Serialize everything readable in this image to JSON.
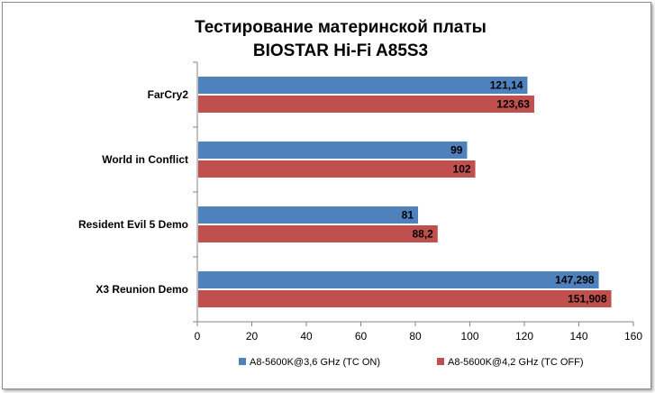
{
  "chart_data": {
    "type": "bar",
    "orientation": "horizontal",
    "title_lines": [
      "Тестирование материнской платы",
      "BIOSTAR Hi-Fi A85S3"
    ],
    "categories": [
      "FarCry2",
      "World in Conflict",
      "Resident Evil 5 Demo",
      "X3 Reunion Demo"
    ],
    "series": [
      {
        "name": "A8-5600K@3,6 GHz (TC ON)",
        "color": "#4f81bd",
        "values": [
          121.14,
          99,
          81,
          147.298
        ],
        "labels": [
          "121,14",
          "99",
          "81",
          "147,298"
        ]
      },
      {
        "name": "A8-5600K@4,2 GHz (TC OFF)",
        "color": "#c0504d",
        "values": [
          123.63,
          102,
          88.2,
          151.908
        ],
        "labels": [
          "123,63",
          "102",
          "88,2",
          "151,908"
        ]
      }
    ],
    "xlim": [
      0,
      160
    ],
    "x_ticks": [
      0,
      20,
      40,
      60,
      80,
      100,
      120,
      140,
      160
    ],
    "xlabel": "",
    "ylabel": "",
    "grid": false,
    "legend_position": "bottom"
  }
}
